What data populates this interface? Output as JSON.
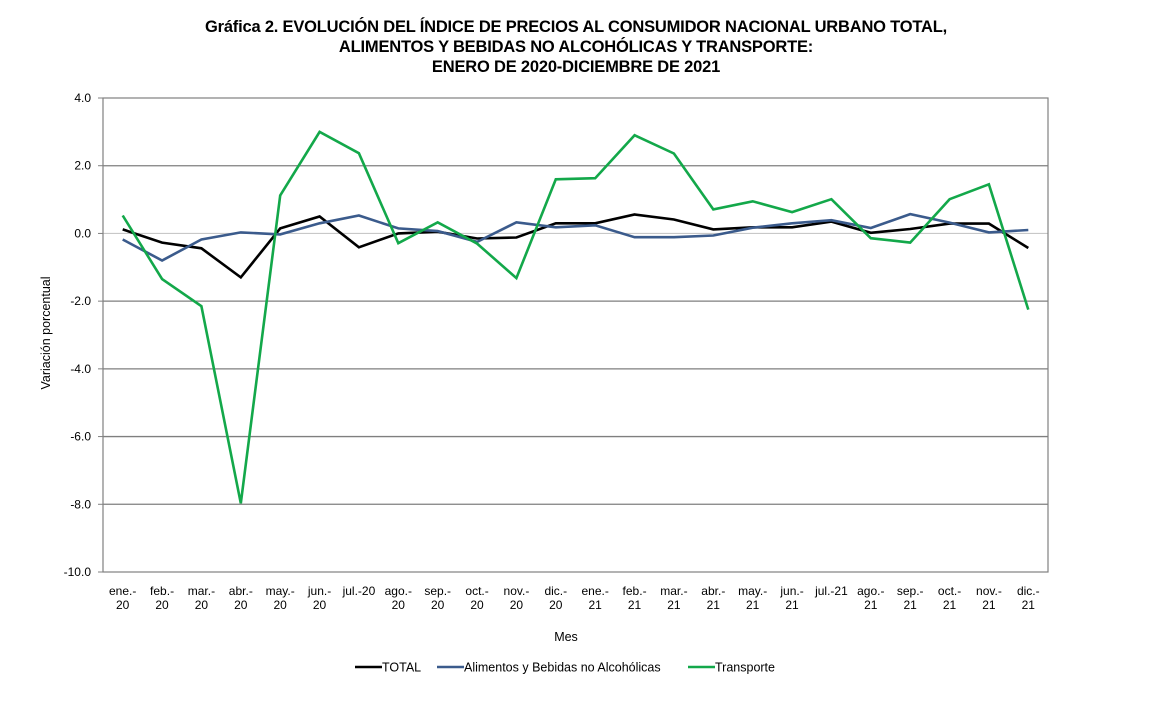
{
  "chart_data": {
    "type": "line",
    "title": [
      "Gráfica 2. EVOLUCIÓN DEL ÍNDICE DE PRECIOS AL CONSUMIDOR NACIONAL URBANO TOTAL,",
      "ALIMENTOS Y BEBIDAS NO ALCOHÓLICAS Y TRANSPORTE:",
      "ENERO DE 2020-DICIEMBRE DE 2021"
    ],
    "xlabel": "Mes",
    "ylabel": "Variación  porcentual",
    "ylim": [
      -10.0,
      4.0
    ],
    "yticks": [
      4.0,
      2.0,
      0.0,
      -2.0,
      -4.0,
      -6.0,
      -8.0,
      -10.0
    ],
    "ytick_labels": [
      "4.0",
      "2.0",
      "0.0",
      "-2.0",
      "-4.0",
      "-6.0",
      "-8.0",
      "-10.0"
    ],
    "grid": true,
    "legend_position": "bottom",
    "categories": [
      [
        "ene.-",
        "20"
      ],
      [
        "feb.-",
        "20"
      ],
      [
        "mar.-",
        "20"
      ],
      [
        "abr.-",
        "20"
      ],
      [
        "may.-",
        "20"
      ],
      [
        "jun.-",
        "20"
      ],
      [
        "jul.-20",
        ""
      ],
      [
        "ago.-",
        "20"
      ],
      [
        "sep.-",
        "20"
      ],
      [
        "oct.-",
        "20"
      ],
      [
        "nov.-",
        "20"
      ],
      [
        "dic.-",
        "20"
      ],
      [
        "ene.-",
        "21"
      ],
      [
        "feb.-",
        "21"
      ],
      [
        "mar.-",
        "21"
      ],
      [
        "abr.-",
        "21"
      ],
      [
        "may.-",
        "21"
      ],
      [
        "jun.-",
        "21"
      ],
      [
        "jul.-21",
        ""
      ],
      [
        "ago.-",
        "21"
      ],
      [
        "sep.-",
        "21"
      ],
      [
        "oct.-",
        "21"
      ],
      [
        "nov.-",
        "21"
      ],
      [
        "dic.-",
        "21"
      ]
    ],
    "series": [
      {
        "name": "TOTAL",
        "color": "#000000",
        "values": [
          0.12,
          -0.27,
          -0.44,
          -1.3,
          0.15,
          0.5,
          -0.41,
          0.0,
          0.05,
          -0.15,
          -0.12,
          0.3,
          0.3,
          0.56,
          0.41,
          0.12,
          0.18,
          0.18,
          0.35,
          0.02,
          0.13,
          0.29,
          0.29,
          -0.43
        ]
      },
      {
        "name": "Alimentos y Bebidas no Alcohólicas",
        "color": "#3b5b8c",
        "values": [
          -0.18,
          -0.8,
          -0.18,
          0.03,
          -0.03,
          0.3,
          0.53,
          0.15,
          0.07,
          -0.25,
          0.33,
          0.18,
          0.24,
          -0.11,
          -0.11,
          -0.06,
          0.17,
          0.3,
          0.39,
          0.16,
          0.57,
          0.32,
          0.03,
          0.1
        ]
      },
      {
        "name": "Transporte",
        "color": "#13a84a",
        "values": [
          0.53,
          -1.35,
          -2.15,
          -7.97,
          1.12,
          3.0,
          2.37,
          -0.29,
          0.33,
          -0.3,
          -1.32,
          1.6,
          1.63,
          2.9,
          2.36,
          0.71,
          0.95,
          0.63,
          1.01,
          -0.14,
          -0.27,
          1.01,
          1.45,
          -2.25
        ]
      }
    ]
  }
}
